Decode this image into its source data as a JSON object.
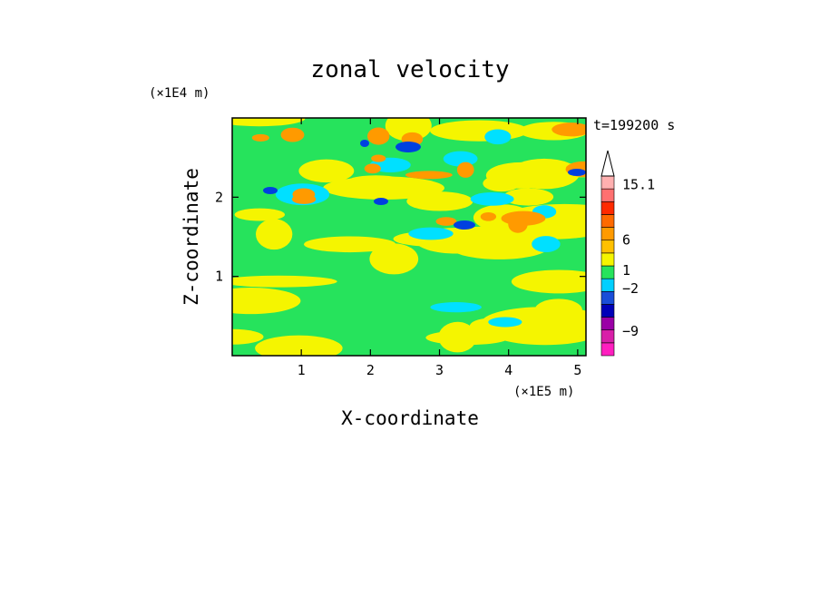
{
  "chart_data": {
    "type": "heatmap",
    "title": "zonal velocity",
    "xlabel": "X-coordinate",
    "ylabel": "Z-coordinate",
    "x_unit": "(×1E5 m)",
    "y_unit": "(×1E4 m)",
    "time_label": "t=199200 s",
    "xlim": [
      0,
      5.12
    ],
    "ylim": [
      0,
      3.0
    ],
    "x_ticks": [
      "1",
      "2",
      "3",
      "4",
      "5"
    ],
    "x_tick_values": [
      1,
      2,
      3,
      4,
      5
    ],
    "y_ticks": [
      "1",
      "2"
    ],
    "y_tick_values": [
      1,
      2
    ],
    "colorbar": {
      "labels": [
        "15.1",
        "6",
        "1",
        "−2",
        "−9"
      ],
      "label_values": [
        15.1,
        6,
        1,
        -2,
        -9
      ],
      "colors": [
        "#ff1fbf",
        "#d81fa8",
        "#9a00a6",
        "#0000b8",
        "#1a4ed8",
        "#00cfff",
        "#26e35c",
        "#f5f500",
        "#ffc000",
        "#ff9a00",
        "#ff6a00",
        "#ff2a00",
        "#ff7070",
        "#ffb0b0"
      ],
      "triangle_color": "#ffffff"
    },
    "field_palette": [
      "#26e35c",
      "#f5f500",
      "#00e0ff",
      "#ff9a00",
      "#0040e0"
    ]
  }
}
